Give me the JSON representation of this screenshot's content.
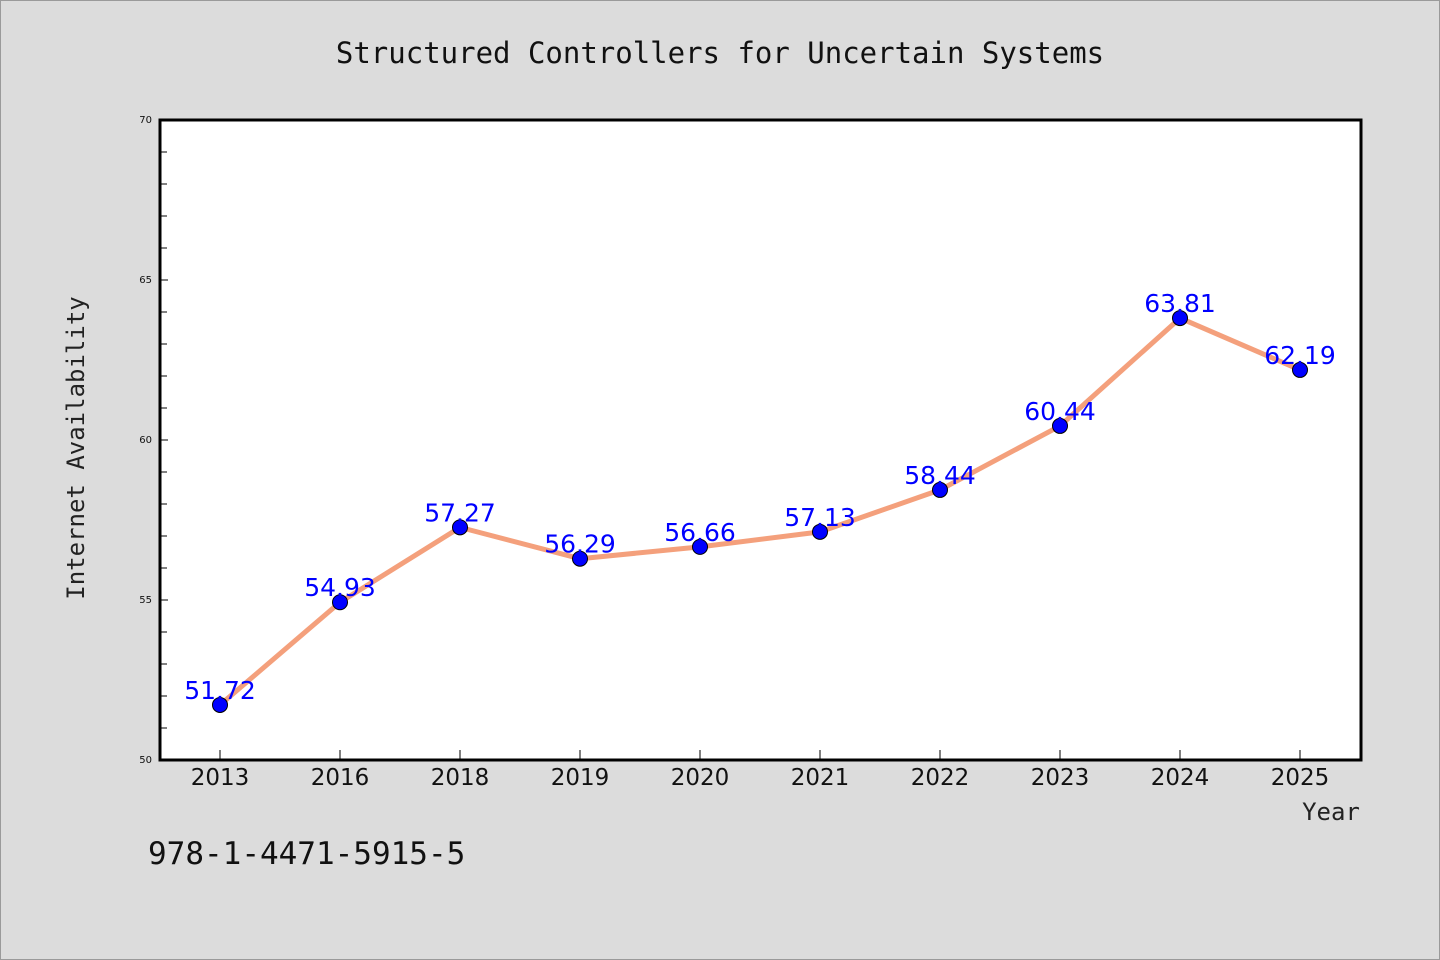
{
  "chart_data": {
    "type": "line",
    "title": "Structured Controllers for Uncertain Systems",
    "xlabel": "Year",
    "ylabel": "Internet Availability",
    "categories": [
      "2013",
      "2016",
      "2018",
      "2019",
      "2020",
      "2021",
      "2022",
      "2023",
      "2024",
      "2025"
    ],
    "series": [
      {
        "values": [
          51.72,
          54.93,
          57.27,
          56.29,
          56.66,
          57.13,
          58.44,
          60.44,
          63.81,
          62.19
        ],
        "labels": [
          "51.72",
          "54.93",
          "57.27",
          "56.29",
          "56.66",
          "57.13",
          "58.44",
          "60.44",
          "63.81",
          "62.19"
        ],
        "line_color": "#f4a07c",
        "marker_color": "#0000ff"
      }
    ],
    "ylim": [
      50,
      70
    ],
    "yticks": [
      "50",
      "55",
      "60",
      "65",
      "70"
    ],
    "grid": false,
    "legend": "none"
  },
  "footer": {
    "isbn": "978-1-4471-5915-5"
  },
  "colors": {
    "background": "#dcdcdc",
    "plot_bg": "#ffffff",
    "line": "#f4a07c",
    "marker": "#0000ff",
    "label": "#0000ff"
  }
}
